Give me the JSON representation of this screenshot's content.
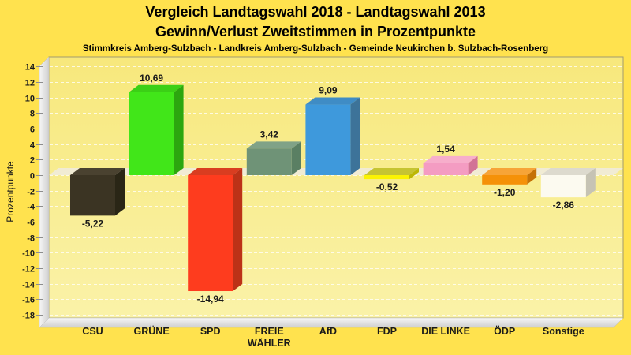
{
  "header": {
    "title_line1": "Vergleich Landtagswahl 2018 - Landtagswahl 2013",
    "title_line2": "Gewinn/Verlust Zweitstimmen in Prozentpunkte",
    "subtitle": "Stimmkreis Amberg-Sulzbach - Landkreis Amberg-Sulzbach - Gemeinde Neukirchen b. Sulzbach-Rosenberg"
  },
  "colors": {
    "background": "#FFE24E",
    "plot_bg_top": "#F7E87C",
    "plot_bg_bottom": "#FAF2A8",
    "plot_border": "#A29B6F",
    "gridline": "rgba(255,255,255,0.75)",
    "tick": "#8D8D8D",
    "wall_light": "#F6F6F6",
    "wall_dark": "#CFCFCF",
    "zero_band": "rgba(239,235,219,0.9)",
    "text": "#1A1A1A"
  },
  "chart_data": {
    "type": "bar",
    "title_line1": "Vergleich Landtagswahl 2018 - Landtagswahl 2013",
    "title_line2": "Gewinn/Verlust Zweitstimmen in Prozentpunkte",
    "subtitle": "Stimmkreis Amberg-Sulzbach - Landkreis Amberg-Sulzbach - Gemeinde Neukirchen b. Sulzbach-Rosenberg",
    "ylabel": "Prozentpunkte",
    "ylim": [
      -18,
      14
    ],
    "ytick_step": 2,
    "grid": true,
    "legend": "none",
    "categories": [
      "CSU",
      "GRÜNE",
      "SPD",
      "FREIE WÄHLER",
      "AfD",
      "FDP",
      "DIE LINKE",
      "ÖDP",
      "Sonstige"
    ],
    "category_lines": [
      [
        "CSU"
      ],
      [
        "GRÜNE"
      ],
      [
        "SPD"
      ],
      [
        "FREIE",
        "WÄHLER"
      ],
      [
        "AfD"
      ],
      [
        "FDP"
      ],
      [
        "DIE LINKE"
      ],
      [
        "ÖDP"
      ],
      [
        "Sonstige"
      ]
    ],
    "values": [
      -5.22,
      10.69,
      -14.94,
      3.42,
      9.09,
      -0.52,
      1.54,
      -1.2,
      -2.86
    ],
    "value_labels": [
      "-5,22",
      "10,69",
      "-14,94",
      "3,42",
      "9,09",
      "-0,52",
      "1,54",
      "-1,20",
      "-2,86"
    ],
    "bar_colors": [
      {
        "front": "#3B3423",
        "top": "#4A4230",
        "side": "#2A2616"
      },
      {
        "front": "#41E619",
        "top": "#3BD016",
        "side": "#2CA60F"
      },
      {
        "front": "#FE3C1E",
        "top": "#D93D20",
        "side": "#BC3217"
      },
      {
        "front": "#6F9377",
        "top": "#80A287",
        "side": "#5A7F63"
      },
      {
        "front": "#3E99DC",
        "top": "#3F8CC5",
        "side": "#3D7399"
      },
      {
        "front": "#FBF303",
        "top": "#C6C432",
        "side": "#BCB705"
      },
      {
        "front": "#F49CC2",
        "top": "#F7AECB",
        "side": "#D27396"
      },
      {
        "front": "#F59108",
        "top": "#F7A437",
        "side": "#C57106"
      },
      {
        "front": "#FCFAF0",
        "top": "#DDDACE",
        "side": "#C6C3B4"
      }
    ]
  }
}
